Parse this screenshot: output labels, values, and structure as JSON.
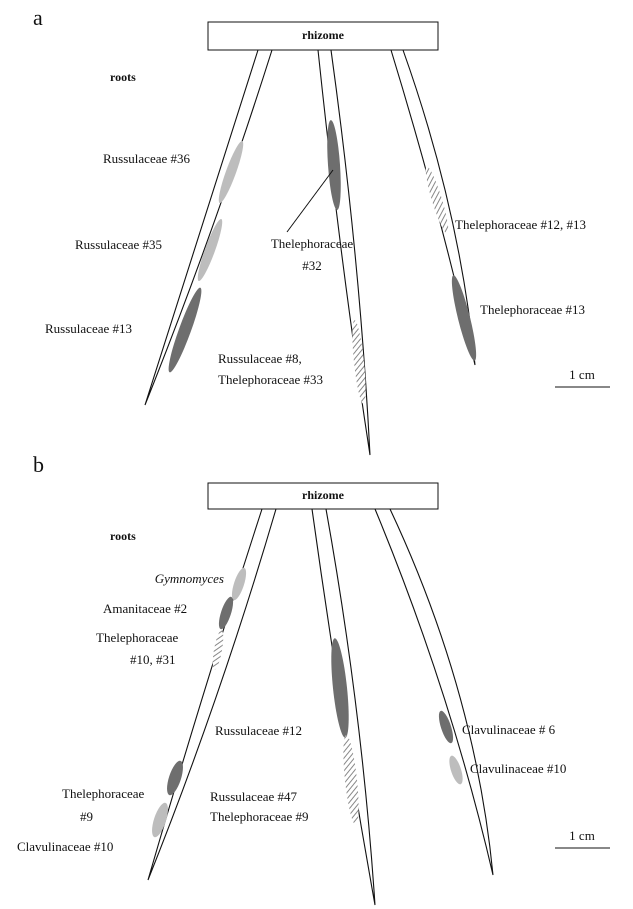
{
  "panels": [
    {
      "label": "a",
      "rhizome": "rhizome",
      "roots": "roots",
      "annotations": [
        "Russulaceae #36",
        "Russulaceae #35",
        "Russulaceae #13",
        "Thelephoraceae",
        "#32",
        "Russulaceae #8,",
        "Thelephoraceae #33",
        "Thelephoraceae #12, #13",
        "Thelephoraceae #13"
      ],
      "scale": "1 cm"
    },
    {
      "label": "b",
      "rhizome": "rhizome",
      "roots": "roots",
      "annotations": [
        "Gymnomyces",
        "Amanitaceae #2",
        "Thelephoraceae",
        "#10, #31",
        "Russulaceae #12",
        "Thelephoraceae",
        "#9",
        "Clavulinaceae #10",
        "Russulaceae #47",
        "Thelephoraceae #9",
        "Clavulinaceae # 6",
        "Clavulinaceae #10"
      ],
      "scale": "1 cm"
    }
  ]
}
